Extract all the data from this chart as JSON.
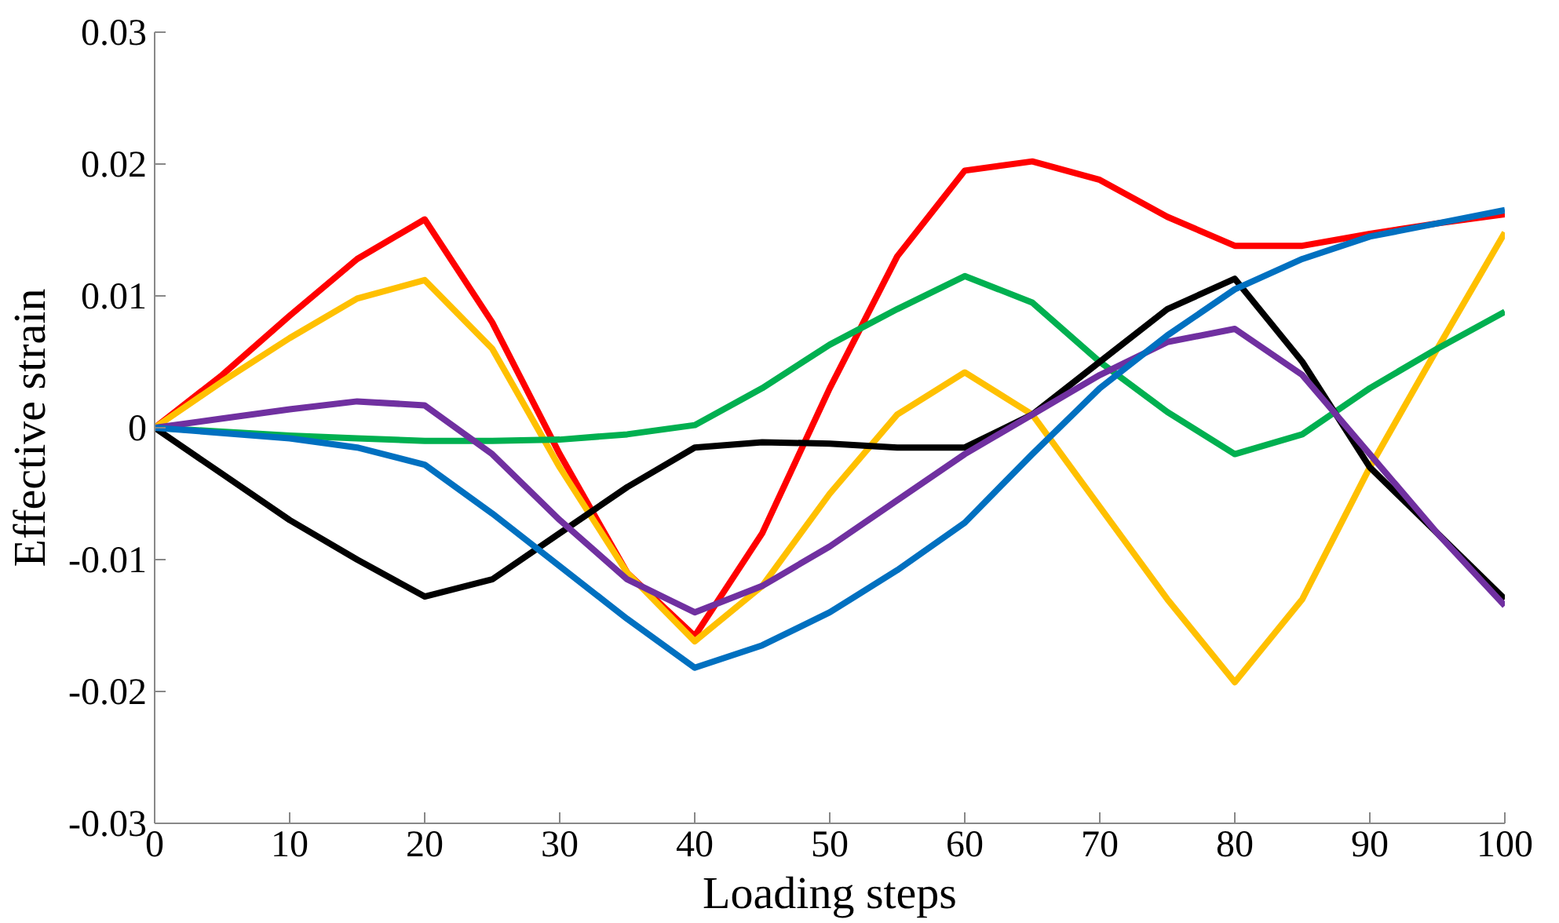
{
  "chart_data": {
    "type": "line",
    "xlabel": "Loading steps",
    "ylabel": "Effective strain",
    "x": [
      0,
      5,
      10,
      15,
      20,
      25,
      30,
      35,
      40,
      45,
      50,
      55,
      60,
      65,
      70,
      75,
      80,
      85,
      90,
      95,
      100
    ],
    "series": [
      {
        "color": "#ff0000",
        "values": [
          0,
          0.004,
          0.0085,
          0.0128,
          0.0158,
          0.008,
          -0.002,
          -0.011,
          -0.0158,
          -0.008,
          0.003,
          0.013,
          0.0195,
          0.0202,
          0.0188,
          0.016,
          0.0138,
          0.0138,
          0.0147,
          0.0155,
          0.0162
        ]
      },
      {
        "color": "#ffc000",
        "values": [
          0,
          0.0035,
          0.0068,
          0.0098,
          0.0112,
          0.006,
          -0.003,
          -0.011,
          -0.0162,
          -0.012,
          -0.005,
          0.001,
          0.0042,
          0.001,
          -0.006,
          -0.013,
          -0.0193,
          -0.013,
          -0.003,
          0.006,
          0.0148
        ]
      },
      {
        "color": "#00b050",
        "values": [
          0,
          -0.0003,
          -0.0006,
          -0.0008,
          -0.001,
          -0.001,
          -0.0009,
          -0.0005,
          0.0002,
          0.003,
          0.0063,
          0.009,
          0.0115,
          0.0095,
          0.005,
          0.0012,
          -0.002,
          -0.0005,
          0.003,
          0.006,
          0.0088
        ]
      },
      {
        "color": "#000000",
        "values": [
          0,
          -0.0035,
          -0.007,
          -0.01,
          -0.0128,
          -0.0115,
          -0.008,
          -0.0045,
          -0.0015,
          -0.0011,
          -0.0012,
          -0.0015,
          -0.0015,
          0.001,
          0.005,
          0.009,
          0.0113,
          0.005,
          -0.003,
          -0.008,
          -0.013
        ]
      },
      {
        "color": "#7030a0",
        "values": [
          0,
          0.0007,
          0.0014,
          0.002,
          0.0017,
          -0.002,
          -0.007,
          -0.0115,
          -0.014,
          -0.012,
          -0.009,
          -0.0055,
          -0.002,
          0.001,
          0.004,
          0.0065,
          0.0075,
          0.004,
          -0.002,
          -0.008,
          -0.0135
        ]
      },
      {
        "color": "#0070c0",
        "values": [
          0,
          -0.0004,
          -0.0008,
          -0.0015,
          -0.0028,
          -0.0065,
          -0.0105,
          -0.0145,
          -0.0182,
          -0.0165,
          -0.014,
          -0.0108,
          -0.0072,
          -0.002,
          0.003,
          0.007,
          0.0105,
          0.0128,
          0.0145,
          0.0155,
          0.0165
        ]
      }
    ],
    "xlim": [
      0,
      100
    ],
    "xticks": [
      0,
      10,
      20,
      30,
      40,
      50,
      60,
      70,
      80,
      90,
      100
    ],
    "ylim": [
      -0.03,
      0.03
    ],
    "yticks": [
      -0.03,
      -0.02,
      -0.01,
      0,
      0.01,
      0.02,
      0.03
    ],
    "grid": false,
    "marker": "none",
    "line_style": "solid"
  }
}
